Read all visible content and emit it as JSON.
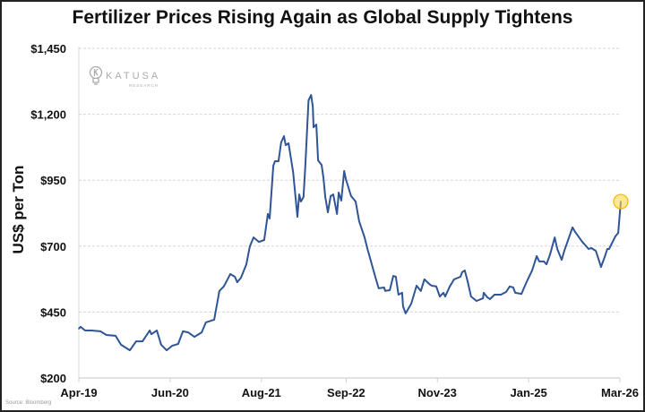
{
  "chart_data": {
    "type": "line",
    "title": "Fertilizer Prices Rising Again as Global Supply Tightens",
    "xlabel": "",
    "ylabel": "US$ per Ton",
    "ylim": [
      200,
      1450
    ],
    "yticks": [
      200,
      450,
      700,
      950,
      1200,
      1450
    ],
    "ytick_labels": [
      "$200",
      "$450",
      "$700",
      "$950",
      "$1,200",
      "$1,450"
    ],
    "xticks": [
      "2019-04-01",
      "2020-06-01",
      "2021-08-01",
      "2022-09-01",
      "2023-11-01",
      "2025-01-01",
      "2026-03-01"
    ],
    "xtick_labels": [
      "Apr-19",
      "Jun-20",
      "Aug-21",
      "Sep-22",
      "Nov-23",
      "Jan-25",
      "Mar-26"
    ],
    "grid": "horizontal dashed",
    "line_color": "#2f5597",
    "highlight_color": "#ffd54f",
    "highlight_last_point": true,
    "source": "Source: Bloomberg",
    "logo": {
      "name": "KATUSA",
      "subtitle": "RESEARCH"
    },
    "series": [
      {
        "points": [
          [
            "2019-04-01",
            387
          ],
          [
            "2019-04-09",
            394
          ],
          [
            "2019-04-30",
            380
          ],
          [
            "2019-05-29",
            380
          ],
          [
            "2019-07-10",
            377
          ],
          [
            "2019-08-08",
            363
          ],
          [
            "2019-09-20",
            360
          ],
          [
            "2019-10-15",
            326
          ],
          [
            "2019-11-26",
            305
          ],
          [
            "2019-12-25",
            339
          ],
          [
            "2020-01-24",
            339
          ],
          [
            "2020-02-27",
            380
          ],
          [
            "2020-03-05",
            366
          ],
          [
            "2020-03-30",
            380
          ],
          [
            "2020-04-20",
            326
          ],
          [
            "2020-05-15",
            305
          ],
          [
            "2020-06-10",
            322
          ],
          [
            "2020-07-08",
            329
          ],
          [
            "2020-07-30",
            377
          ],
          [
            "2020-08-24",
            373
          ],
          [
            "2020-09-23",
            356
          ],
          [
            "2020-10-26",
            373
          ],
          [
            "2020-11-16",
            411
          ],
          [
            "2020-12-24",
            421
          ],
          [
            "2021-01-18",
            530
          ],
          [
            "2021-02-08",
            547
          ],
          [
            "2021-03-08",
            594
          ],
          [
            "2021-03-29",
            584
          ],
          [
            "2021-04-10",
            563
          ],
          [
            "2021-04-27",
            580
          ],
          [
            "2021-05-22",
            631
          ],
          [
            "2021-06-08",
            699
          ],
          [
            "2021-06-25",
            733
          ],
          [
            "2021-07-20",
            716
          ],
          [
            "2021-08-14",
            723
          ],
          [
            "2021-09-01",
            822
          ],
          [
            "2021-09-09",
            805
          ],
          [
            "2021-09-26",
            1005
          ],
          [
            "2021-10-04",
            1022
          ],
          [
            "2021-10-20",
            1022
          ],
          [
            "2021-11-02",
            1093
          ],
          [
            "2021-11-15",
            1117
          ],
          [
            "2021-11-23",
            1083
          ],
          [
            "2021-12-06",
            1090
          ],
          [
            "2021-12-27",
            981
          ],
          [
            "2022-01-17",
            811
          ],
          [
            "2022-01-25",
            896
          ],
          [
            "2022-02-03",
            869
          ],
          [
            "2022-02-15",
            886
          ],
          [
            "2022-02-24",
            1015
          ],
          [
            "2022-03-08",
            1253
          ],
          [
            "2022-03-20",
            1273
          ],
          [
            "2022-03-28",
            1229
          ],
          [
            "2022-04-01",
            1151
          ],
          [
            "2022-04-14",
            1161
          ],
          [
            "2022-04-22",
            1025
          ],
          [
            "2022-05-08",
            1008
          ],
          [
            "2022-05-17",
            958
          ],
          [
            "2022-05-25",
            886
          ],
          [
            "2022-06-07",
            828
          ],
          [
            "2022-06-20",
            890
          ],
          [
            "2022-07-02",
            896
          ],
          [
            "2022-07-19",
            822
          ],
          [
            "2022-07-27",
            903
          ],
          [
            "2022-08-09",
            873
          ],
          [
            "2022-08-22",
            985
          ],
          [
            "2022-08-30",
            954
          ],
          [
            "2022-09-24",
            890
          ],
          [
            "2022-10-15",
            869
          ],
          [
            "2022-11-01",
            794
          ],
          [
            "2022-11-26",
            733
          ],
          [
            "2022-12-08",
            693
          ],
          [
            "2023-01-15",
            584
          ],
          [
            "2023-02-01",
            540
          ],
          [
            "2023-02-26",
            543
          ],
          [
            "2023-03-01",
            530
          ],
          [
            "2023-03-22",
            533
          ],
          [
            "2023-04-08",
            587
          ],
          [
            "2023-04-20",
            584
          ],
          [
            "2023-05-02",
            516
          ],
          [
            "2023-05-19",
            523
          ],
          [
            "2023-05-23",
            472
          ],
          [
            "2023-06-05",
            445
          ],
          [
            "2023-07-01",
            482
          ],
          [
            "2023-07-25",
            550
          ],
          [
            "2023-08-15",
            530
          ],
          [
            "2023-09-01",
            574
          ],
          [
            "2023-09-23",
            557
          ],
          [
            "2023-10-05",
            550
          ],
          [
            "2023-10-26",
            547
          ],
          [
            "2023-11-12",
            509
          ],
          [
            "2023-11-29",
            523
          ],
          [
            "2023-12-07",
            509
          ],
          [
            "2023-12-28",
            547
          ],
          [
            "2024-01-18",
            574
          ],
          [
            "2024-02-17",
            584
          ],
          [
            "2024-02-25",
            601
          ],
          [
            "2024-03-07",
            608
          ],
          [
            "2024-03-20",
            567
          ],
          [
            "2024-04-06",
            509
          ],
          [
            "2024-05-01",
            492
          ],
          [
            "2024-06-01",
            502
          ],
          [
            "2024-06-04",
            523
          ],
          [
            "2024-06-21",
            506
          ],
          [
            "2024-07-03",
            499
          ],
          [
            "2024-07-24",
            516
          ],
          [
            "2024-08-23",
            516
          ],
          [
            "2024-09-17",
            526
          ],
          [
            "2024-10-04",
            547
          ],
          [
            "2024-10-20",
            543
          ],
          [
            "2024-10-29",
            523
          ],
          [
            "2024-11-28",
            519
          ],
          [
            "2024-12-14",
            550
          ],
          [
            "2024-12-27",
            574
          ],
          [
            "2025-01-17",
            608
          ],
          [
            "2025-01-30",
            642
          ],
          [
            "2025-02-08",
            662
          ],
          [
            "2025-02-20",
            642
          ],
          [
            "2025-03-11",
            642
          ],
          [
            "2025-03-23",
            631
          ],
          [
            "2025-04-10",
            669
          ],
          [
            "2025-05-01",
            733
          ],
          [
            "2025-05-13",
            689
          ],
          [
            "2025-06-03",
            648
          ],
          [
            "2025-06-15",
            682
          ],
          [
            "2025-07-23",
            771
          ],
          [
            "2025-08-05",
            754
          ],
          [
            "2025-09-08",
            716
          ],
          [
            "2025-10-07",
            689
          ],
          [
            "2025-10-19",
            693
          ],
          [
            "2025-11-10",
            682
          ],
          [
            "2025-11-26",
            642
          ],
          [
            "2025-12-04",
            621
          ],
          [
            "2025-12-21",
            659
          ],
          [
            "2026-01-03",
            689
          ],
          [
            "2026-01-11",
            689
          ],
          [
            "2026-02-10",
            737
          ],
          [
            "2026-02-23",
            750
          ],
          [
            "2026-03-05",
            869
          ]
        ]
      }
    ]
  }
}
